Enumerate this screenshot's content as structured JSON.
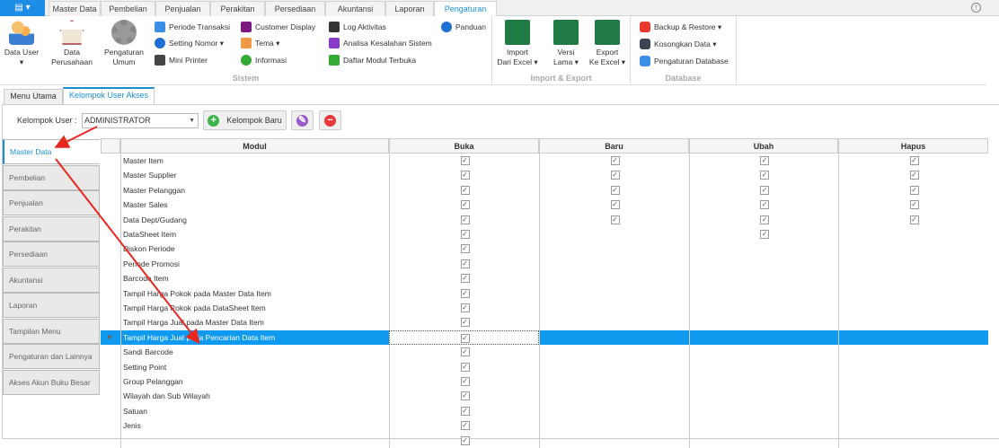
{
  "ribbon_tabs": [
    "Master Data",
    "Pembelian",
    "Penjualan",
    "Perakitan",
    "Persediaan",
    "Akuntansi",
    "Laporan",
    "Pengaturan"
  ],
  "active_tab": "Pengaturan",
  "app_button": "▤ ▾",
  "groups": {
    "sistem": {
      "label": "Sistem",
      "big": [
        {
          "label1": "Data User",
          "label2": "▾",
          "icon": "users-icon"
        },
        {
          "label1": "Data",
          "label2": "Perusahaan",
          "icon": "house-icon"
        },
        {
          "label1": "Pengaturan",
          "label2": "Umum",
          "icon": "gear-icon"
        }
      ],
      "small": [
        "Periode Transaksi",
        "Setting Nomor ▾",
        "Mini Printer",
        "Customer Display",
        "Tema ▾",
        "Informasi",
        "Log Aktivitas",
        "Analisa Kesalahan Sistem",
        "Daftar Modul Terbuka",
        "Panduan"
      ]
    },
    "import_export": {
      "label": "Import & Export",
      "big": [
        {
          "label1": "Import",
          "label2": "Dari Excel ▾",
          "icon": "excel-icon"
        },
        {
          "label1": "Versi",
          "label2": "Lama ▾",
          "icon": "import-arrow-icon"
        },
        {
          "label1": "Export",
          "label2": "Ke Excel ▾",
          "icon": "excel-icon"
        }
      ]
    },
    "database": {
      "label": "Database",
      "small": [
        "Backup & Restore ▾",
        "Kosongkan Data ▾",
        "Pengaturan Database"
      ]
    }
  },
  "page_tabs": [
    "Menu Utama",
    "Kelompok User Akses"
  ],
  "kelompok_label": "Kelompok User :",
  "kelompok_value": "ADMINISTRATOR",
  "kelompok_baru": "Kelompok Baru",
  "side_tabs": [
    "Master Data",
    "Pembelian",
    "Penjualan",
    "Perakitan",
    "Persediaan",
    "Akuntansi",
    "Laporan",
    "Tampilan Menu",
    "Pengaturan dan Lainnya",
    "Akses Akun Buku Besar"
  ],
  "columns": [
    "Modul",
    "Buka",
    "Baru",
    "Ubah",
    "Hapus"
  ],
  "rows": [
    {
      "modul": "Master Item",
      "perm": [
        1,
        1,
        1,
        1
      ]
    },
    {
      "modul": "Master Supplier",
      "perm": [
        1,
        1,
        1,
        1
      ]
    },
    {
      "modul": "Master Pelanggan",
      "perm": [
        1,
        1,
        1,
        1
      ]
    },
    {
      "modul": "Master Sales",
      "perm": [
        1,
        1,
        1,
        1
      ]
    },
    {
      "modul": "Data Dept/Gudang",
      "perm": [
        1,
        1,
        1,
        1
      ]
    },
    {
      "modul": "DataSheet Item",
      "perm": [
        1,
        0,
        1,
        0
      ]
    },
    {
      "modul": "Diskon Periode",
      "perm": [
        1,
        0,
        0,
        0
      ]
    },
    {
      "modul": "Periode Promosi",
      "perm": [
        1,
        0,
        0,
        0
      ]
    },
    {
      "modul": "Barcode Item",
      "perm": [
        1,
        0,
        0,
        0
      ]
    },
    {
      "modul": "Tampil Harga Pokok pada Master Data Item",
      "perm": [
        1,
        0,
        0,
        0
      ]
    },
    {
      "modul": "Tampil Harga Pokok pada DataSheet Item",
      "perm": [
        1,
        0,
        0,
        0
      ]
    },
    {
      "modul": "Tampil Harga Jual pada Master Data Item",
      "perm": [
        1,
        0,
        0,
        0
      ]
    },
    {
      "modul": "Tampil Harga Jual pada Pencarian Data Item",
      "perm": [
        1,
        0,
        0,
        0
      ],
      "selected": true
    },
    {
      "modul": "Sandi Barcode",
      "perm": [
        1,
        0,
        0,
        0
      ]
    },
    {
      "modul": "Setting Point",
      "perm": [
        1,
        0,
        0,
        0
      ]
    },
    {
      "modul": "Group Pelanggan",
      "perm": [
        1,
        0,
        0,
        0
      ]
    },
    {
      "modul": "Wilayah dan Sub Wilayah",
      "perm": [
        1,
        0,
        0,
        0
      ]
    },
    {
      "modul": "Satuan",
      "perm": [
        1,
        0,
        0,
        0
      ]
    },
    {
      "modul": "Jenis",
      "perm": [
        1,
        0,
        0,
        0
      ]
    },
    {
      "modul": "",
      "perm": [
        1,
        0,
        0,
        0
      ]
    }
  ],
  "colors": {
    "accent": "#1a8fd8",
    "selection": "#0f9af0",
    "annotation_arrow": "#e8281e"
  }
}
